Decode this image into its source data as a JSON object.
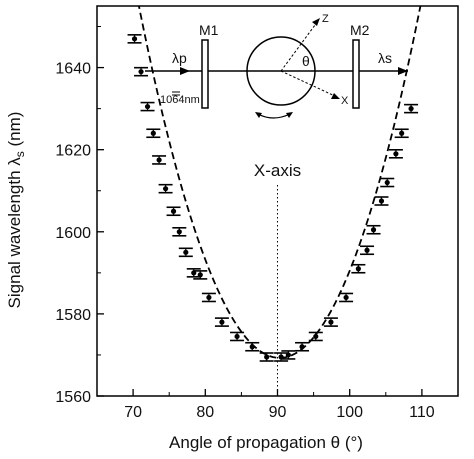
{
  "chart_data": {
    "type": "scatter",
    "xlabel": "Angle of propagation θ (°)",
    "ylabel": "Signal wavelength λs (nm)",
    "xlim": [
      65,
      115
    ],
    "ylim": [
      1560,
      1655
    ],
    "x_ticks": [
      70,
      80,
      90,
      100,
      110
    ],
    "y_ticks": [
      1560,
      1580,
      1600,
      1620,
      1640
    ],
    "grid": false,
    "series": [
      {
        "values_type": "measured",
        "points": [
          {
            "x": 70.2,
            "y": 1647
          },
          {
            "x": 71.1,
            "y": 1639
          },
          {
            "x": 72.0,
            "y": 1630.5
          },
          {
            "x": 72.8,
            "y": 1624
          },
          {
            "x": 73.6,
            "y": 1617.5
          },
          {
            "x": 74.5,
            "y": 1610.5
          },
          {
            "x": 75.6,
            "y": 1605
          },
          {
            "x": 76.4,
            "y": 1600
          },
          {
            "x": 77.3,
            "y": 1595
          },
          {
            "x": 78.4,
            "y": 1590
          },
          {
            "x": 79.3,
            "y": 1589.5
          },
          {
            "x": 80.5,
            "y": 1584
          },
          {
            "x": 82.3,
            "y": 1578
          },
          {
            "x": 84.4,
            "y": 1574.5
          },
          {
            "x": 86.5,
            "y": 1572
          },
          {
            "x": 88.5,
            "y": 1569.5
          },
          {
            "x": 90.5,
            "y": 1569.5
          },
          {
            "x": 91.5,
            "y": 1570
          },
          {
            "x": 93.4,
            "y": 1572
          },
          {
            "x": 95.3,
            "y": 1574.5
          },
          {
            "x": 97.4,
            "y": 1578
          },
          {
            "x": 99.5,
            "y": 1584
          },
          {
            "x": 101.2,
            "y": 1591
          },
          {
            "x": 102.4,
            "y": 1595.5
          },
          {
            "x": 103.3,
            "y": 1600.5
          },
          {
            "x": 104.4,
            "y": 1607.5
          },
          {
            "x": 105.2,
            "y": 1612
          },
          {
            "x": 106.4,
            "y": 1619
          },
          {
            "x": 107.2,
            "y": 1624
          },
          {
            "x": 108.5,
            "y": 1630
          }
        ]
      },
      {
        "values_type": "fit",
        "style": "dashed",
        "vertex": {
          "x": 90.3,
          "y": 1569.3
        },
        "curvature": 0.2255
      }
    ],
    "annotations": {
      "xaxis_marker": {
        "x": 90,
        "label": "X-axis"
      }
    }
  },
  "inset": {
    "mirror1": "M1",
    "mirror2": "M2",
    "pump_label": "λp",
    "signal_label": "λs",
    "pump_wavelength": "1064nm",
    "theta": "θ",
    "axis_z": "Z",
    "axis_x": "X"
  }
}
